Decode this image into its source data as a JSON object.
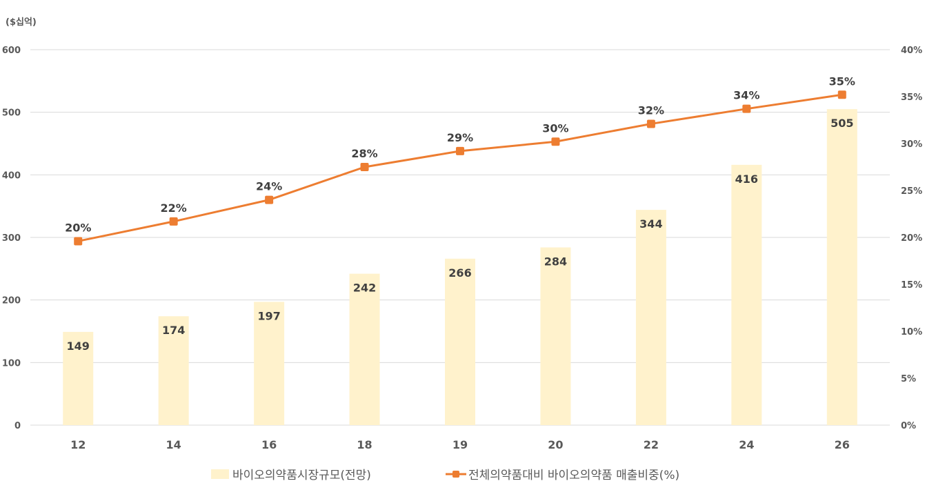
{
  "chart_data": {
    "type": "bar",
    "unit_label": "($십억)",
    "categories": [
      "12",
      "14",
      "16",
      "18",
      "19",
      "20",
      "22",
      "24",
      "26"
    ],
    "series": [
      {
        "name": "바이오의약품시장규모(전망)",
        "type": "bar",
        "axis": "left",
        "values": [
          149,
          174,
          197,
          242,
          266,
          284,
          344,
          416,
          505
        ],
        "labels": [
          "149",
          "174",
          "197",
          "242",
          "266",
          "284",
          "344",
          "416",
          "505"
        ],
        "color": "#FFF2CC"
      },
      {
        "name": "전체의약품대비 바이오의약품 매출비중(%)",
        "type": "line",
        "axis": "right",
        "values": [
          19.6,
          21.7,
          24.0,
          27.5,
          29.2,
          30.2,
          32.1,
          33.7,
          35.2
        ],
        "labels": [
          "20%",
          "22%",
          "24%",
          "28%",
          "29%",
          "30%",
          "32%",
          "34%",
          "35%"
        ],
        "color": "#ED7D31"
      }
    ],
    "y_left": {
      "range": [
        0,
        600
      ],
      "ticks": [
        "0",
        "100",
        "200",
        "300",
        "400",
        "500",
        "600"
      ]
    },
    "y_right": {
      "range": [
        0,
        40
      ],
      "ticks": [
        "0%",
        "5%",
        "10%",
        "15%",
        "20%",
        "25%",
        "30%",
        "35%",
        "40%"
      ]
    },
    "grid": true,
    "legend": "bottom",
    "gridline_color": "#D9D9D9"
  }
}
